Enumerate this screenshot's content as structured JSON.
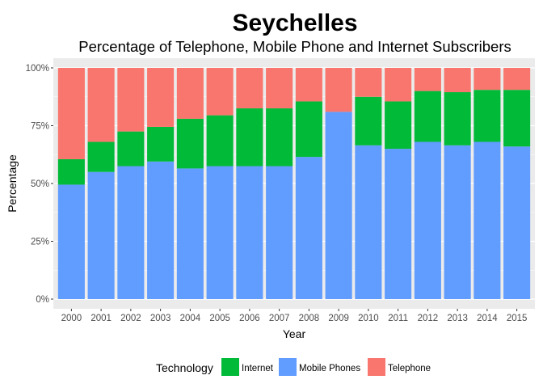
{
  "chart_data": {
    "type": "bar",
    "stacked": true,
    "title": "Seychelles",
    "subtitle": "Percentage of Telephone, Mobile Phone and Internet Subscribers",
    "xlabel": "Year",
    "ylabel": "Percentage",
    "ylim": [
      0,
      100
    ],
    "y_tick_labels": [
      "0%",
      "25%",
      "50%",
      "75%",
      "100%"
    ],
    "categories": [
      "2000",
      "2001",
      "2002",
      "2003",
      "2004",
      "2005",
      "2006",
      "2007",
      "2008",
      "2009",
      "2010",
      "2011",
      "2012",
      "2013",
      "2014",
      "2015"
    ],
    "stack_order": [
      "Mobile Phones",
      "Internet",
      "Telephone"
    ],
    "legend_title": "Technology",
    "legend_position": "bottom",
    "grid": true,
    "panel_background": "#ebebeb",
    "series": [
      {
        "name": "Internet",
        "color": "#00BA38",
        "values": [
          11,
          13,
          15,
          15,
          21.5,
          22,
          25,
          25,
          24,
          0,
          21,
          20.5,
          22,
          23,
          22.5,
          24.5
        ]
      },
      {
        "name": "Mobile Phones",
        "color": "#619CFF",
        "values": [
          49.5,
          55,
          57.5,
          59.5,
          56.5,
          57.5,
          57.5,
          57.5,
          61.5,
          81,
          66.5,
          65,
          68,
          66.5,
          68,
          66
        ]
      },
      {
        "name": "Telephone",
        "color": "#F8766D",
        "values": [
          39.5,
          32,
          27.5,
          25.5,
          22,
          20.5,
          17.5,
          17.5,
          14.5,
          19,
          12.5,
          14.5,
          10,
          10.5,
          9.5,
          9.5
        ]
      }
    ]
  }
}
